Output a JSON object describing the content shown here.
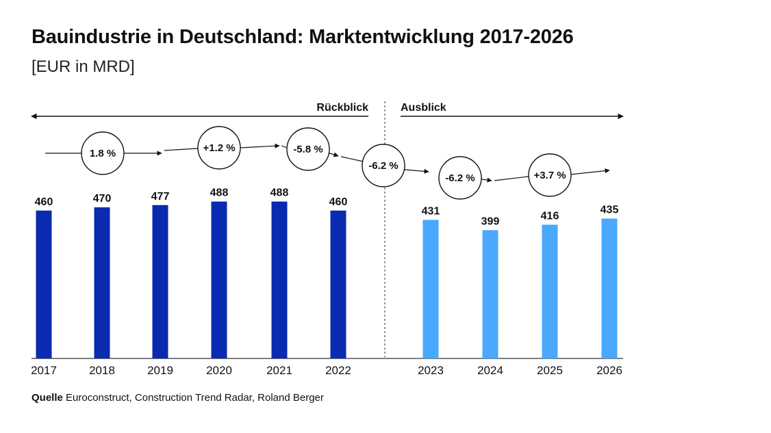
{
  "title": "Bauindustrie in Deutschland: Marktentwicklung 2017-2026",
  "subtitle": "[EUR in MRD]",
  "source": {
    "label": "Quelle",
    "text": "Euroconstruct, Construction Trend Radar, Roland Berger"
  },
  "sections": {
    "left_label": "Rückblick",
    "right_label": "Ausblick"
  },
  "colors": {
    "historic": "#0a2bb0",
    "forecast": "#4aa8ff",
    "text": "#111111",
    "axis": "#333333"
  },
  "chart_data": {
    "type": "bar",
    "categories": [
      "2017",
      "2018",
      "2019",
      "2020",
      "2021",
      "2022",
      "2023",
      "2024",
      "2025",
      "2026"
    ],
    "values": [
      460,
      470,
      477,
      488,
      488,
      460,
      431,
      399,
      416,
      435
    ],
    "series_kind": [
      "historic",
      "historic",
      "historic",
      "historic",
      "historic",
      "historic",
      "forecast",
      "forecast",
      "forecast",
      "forecast"
    ],
    "growth_labels": [
      "1.8 %",
      "+1.2 %",
      "-5.8 %",
      "-6.2 %",
      "-6.2 %",
      "+3.7 %"
    ],
    "ylim": [
      0,
      500
    ],
    "grid": false,
    "legend": "none"
  }
}
